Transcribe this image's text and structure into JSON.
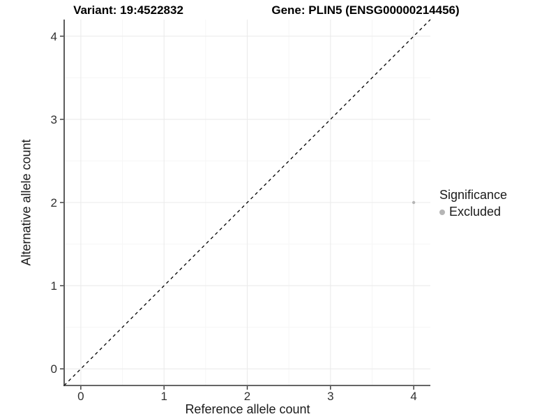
{
  "chart_data": {
    "type": "scatter",
    "title_left": "Variant: 19:4522832",
    "title_right": "Gene: PLIN5 (ENSG00000214456)",
    "xlabel": "Reference allele count",
    "ylabel": "Alternative allele count",
    "xlim": [
      -0.2,
      4.2
    ],
    "ylim": [
      -0.2,
      4.2
    ],
    "x_ticks": [
      0,
      1,
      2,
      3,
      4
    ],
    "y_ticks": [
      0,
      1,
      2,
      3,
      4
    ],
    "minor_gridlines": [
      0.5,
      1.5,
      2.5,
      3.5
    ],
    "grid": "on",
    "identity_line": {
      "style": "dashed",
      "x_start": -0.2,
      "y_start": -0.2,
      "x_end": 4.2,
      "y_end": 4.2,
      "color": "#000000"
    },
    "series": [
      {
        "name": "Excluded",
        "color": "#b5b5b5",
        "points": [
          {
            "x": 4,
            "y": 2
          }
        ]
      }
    ],
    "legend": {
      "title": "Significance",
      "position": "right",
      "items": [
        {
          "label": "Excluded",
          "color": "#b5b5b5"
        }
      ]
    }
  },
  "colors": {
    "background": "#ffffff",
    "grid_major": "#ebebeb",
    "grid_minor": "#f6f6f6",
    "axis_line": "#333333",
    "tick_text": "#303030"
  }
}
